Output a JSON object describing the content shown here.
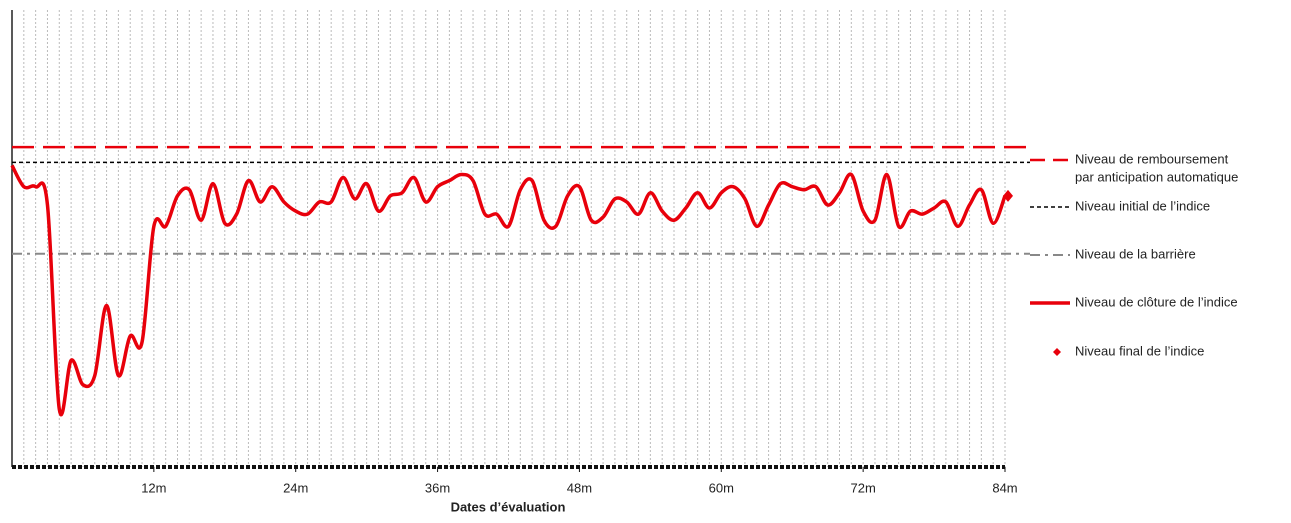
{
  "chart_data": {
    "type": "line",
    "x_label": "Dates d’évaluation",
    "xlim": [
      0,
      84
    ],
    "ylim": [
      0,
      150
    ],
    "xticks": [
      {
        "value": 12,
        "label": "12m"
      },
      {
        "value": 24,
        "label": "24m"
      },
      {
        "value": 36,
        "label": "36m"
      },
      {
        "value": 48,
        "label": "48m"
      },
      {
        "value": 60,
        "label": "60m"
      },
      {
        "value": 72,
        "label": "72m"
      },
      {
        "value": 84,
        "label": "84m"
      }
    ],
    "grid": true,
    "levels": [
      {
        "name": [
          "Niveau de remboursement",
          "par anticipation automatique"
        ],
        "color": "#e8000b",
        "style": "dashed",
        "value": 105
      },
      {
        "name": [
          "Niveau initial de l’indice"
        ],
        "color": "#000000",
        "style": "dotted",
        "value": 100
      },
      {
        "name": [
          "Niveau de la barrière"
        ],
        "color": "#888888",
        "style": "dashdot",
        "value": 70
      }
    ],
    "x": [
      0,
      1,
      2,
      3,
      4,
      5,
      6,
      7,
      8,
      9,
      10,
      11,
      12,
      13,
      14,
      15,
      16,
      17,
      18,
      19,
      20,
      21,
      22,
      23,
      24,
      25,
      26,
      27,
      28,
      29,
      30,
      31,
      32,
      33,
      34,
      35,
      36,
      37,
      38,
      39,
      40,
      41,
      42,
      43,
      44,
      45,
      46,
      47,
      48,
      49,
      50,
      51,
      52,
      53,
      54,
      55,
      56,
      57,
      58,
      59,
      60,
      61,
      62,
      63,
      64,
      65,
      66,
      67,
      68,
      69,
      70,
      71,
      72,
      73,
      74,
      75,
      76,
      77,
      78,
      79,
      80,
      81,
      82,
      83,
      84
    ],
    "series": [
      {
        "name": [
          "Niveau de clôture de l’indice"
        ],
        "color": "#e8000b",
        "values": [
          99,
          92,
          92,
          86,
          19,
          35,
          27,
          30,
          53,
          30,
          43,
          41,
          79,
          79,
          89,
          91,
          81,
          93,
          80,
          83,
          94,
          87,
          92,
          87,
          84,
          83,
          87,
          87,
          95,
          88,
          93,
          84,
          89,
          90,
          95,
          87,
          92,
          94,
          96,
          94,
          83,
          83,
          79,
          91,
          94,
          81,
          79,
          89,
          92,
          81,
          82,
          88,
          87,
          83,
          90,
          84,
          81,
          85,
          90,
          85,
          90,
          92,
          88,
          79,
          86,
          93,
          92,
          91,
          92,
          86,
          90,
          96,
          84,
          81,
          96,
          79,
          84,
          83,
          85,
          87,
          79,
          86,
          91,
          80,
          89
        ]
      }
    ],
    "final": {
      "name": [
        "Niveau final de l’indice"
      ],
      "color": "#e8000b",
      "x": 84,
      "value": 89
    }
  }
}
